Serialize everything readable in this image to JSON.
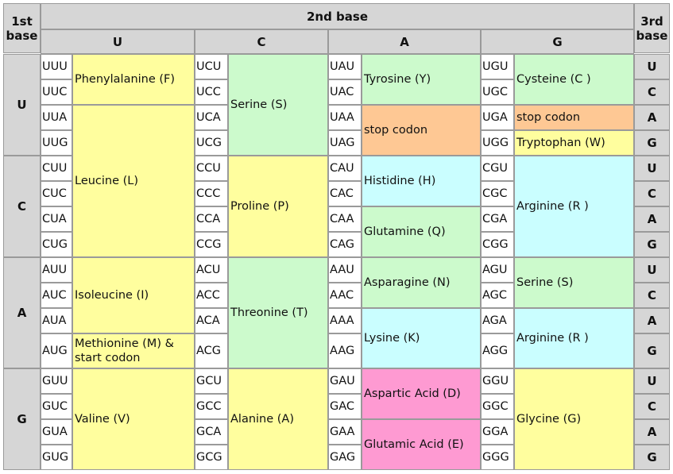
{
  "headers": {
    "first_base": "1st base",
    "second_base": "2nd base",
    "third_base": "3rd base",
    "second_letters": [
      "U",
      "C",
      "A",
      "G"
    ],
    "first_letters": [
      "U",
      "C",
      "A",
      "G"
    ],
    "third_letters": [
      "U",
      "C",
      "A",
      "G"
    ]
  },
  "colors": {
    "yellow": "#fffe9e",
    "green": "#ccfacc",
    "cyan": "#cafeff",
    "orange": "#fec894",
    "pink": "#fe9ad2",
    "header_gray": "#d6d6d6"
  },
  "codons": [
    [
      "UUU",
      "UUC",
      "UUA",
      "UUG",
      "CUU",
      "CUC",
      "CUA",
      "CUG",
      "AUU",
      "AUC",
      "AUA",
      "AUG",
      "GUU",
      "GUC",
      "GUA",
      "GUG"
    ],
    [
      "UCU",
      "UCC",
      "UCA",
      "UCG",
      "CCU",
      "CCC",
      "CCA",
      "CCG",
      "ACU",
      "ACC",
      "ACA",
      "ACG",
      "GCU",
      "GCC",
      "GCA",
      "GCG"
    ],
    [
      "UAU",
      "UAC",
      "UAA",
      "UAG",
      "CAU",
      "CAC",
      "CAA",
      "CAG",
      "AAU",
      "AAC",
      "AAA",
      "AAG",
      "GAU",
      "GAC",
      "GAA",
      "GAG"
    ],
    [
      "UGU",
      "UGC",
      "UGA",
      "UGG",
      "CGU",
      "CGC",
      "CGA",
      "CGG",
      "AGU",
      "AGC",
      "AGA",
      "AGG",
      "GGU",
      "GGC",
      "GGA",
      "GGG"
    ]
  ],
  "amino_acids": [
    [
      {
        "label": "Phenylalanine (F)",
        "start": 0,
        "end": 2,
        "color": "yellow"
      },
      {
        "label": "Leucine (L)",
        "start": 2,
        "end": 8,
        "color": "yellow"
      },
      {
        "label": "Isoleucine (I)",
        "start": 8,
        "end": 11,
        "color": "yellow"
      },
      {
        "label": "Methionine (M) & start codon",
        "start": 11,
        "end": 12,
        "color": "yellow"
      },
      {
        "label": "Valine (V)",
        "start": 12,
        "end": 16,
        "color": "yellow"
      }
    ],
    [
      {
        "label": "Serine (S)",
        "start": 0,
        "end": 4,
        "color": "green"
      },
      {
        "label": "Proline (P)",
        "start": 4,
        "end": 8,
        "color": "yellow"
      },
      {
        "label": "Threonine (T)",
        "start": 8,
        "end": 12,
        "color": "green"
      },
      {
        "label": "Alanine (A)",
        "start": 12,
        "end": 16,
        "color": "yellow"
      }
    ],
    [
      {
        "label": "Tyrosine (Y)",
        "start": 0,
        "end": 2,
        "color": "green"
      },
      {
        "label": "stop codon",
        "start": 2,
        "end": 4,
        "color": "orange"
      },
      {
        "label": "Histidine (H)",
        "start": 4,
        "end": 6,
        "color": "cyan"
      },
      {
        "label": "Glutamine (Q)",
        "start": 6,
        "end": 8,
        "color": "green"
      },
      {
        "label": "Asparagine (N)",
        "start": 8,
        "end": 10,
        "color": "green"
      },
      {
        "label": "Lysine (K)",
        "start": 10,
        "end": 12,
        "color": "cyan"
      },
      {
        "label": "Aspartic Acid (D)",
        "start": 12,
        "end": 14,
        "color": "pink"
      },
      {
        "label": "Glutamic Acid (E)",
        "start": 14,
        "end": 16,
        "color": "pink"
      }
    ],
    [
      {
        "label": "Cysteine (C )",
        "start": 0,
        "end": 2,
        "color": "green"
      },
      {
        "label": "stop codon",
        "start": 2,
        "end": 3,
        "color": "orange"
      },
      {
        "label": "Tryptophan (W)",
        "start": 3,
        "end": 4,
        "color": "yellow"
      },
      {
        "label": "Arginine (R )",
        "start": 4,
        "end": 8,
        "color": "cyan"
      },
      {
        "label": "Serine (S)",
        "start": 8,
        "end": 10,
        "color": "green"
      },
      {
        "label": "Arginine (R )",
        "start": 10,
        "end": 12,
        "color": "cyan"
      },
      {
        "label": "Glycine (G)",
        "start": 12,
        "end": 16,
        "color": "yellow"
      }
    ]
  ]
}
